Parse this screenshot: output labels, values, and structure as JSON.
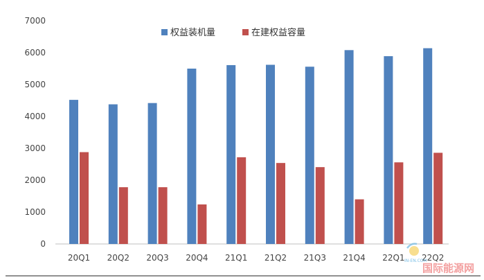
{
  "chart_data": {
    "type": "bar",
    "title": "",
    "xlabel": "",
    "ylabel": "",
    "categories": [
      "20Q1",
      "20Q2",
      "20Q3",
      "20Q4",
      "21Q1",
      "21Q2",
      "21Q3",
      "21Q4",
      "22Q1",
      "22Q2"
    ],
    "series": [
      {
        "name": "权益装机量",
        "color": "#4f81bd",
        "values": [
          4520,
          4380,
          4420,
          5500,
          5610,
          5620,
          5560,
          6080,
          5890,
          6140
        ]
      },
      {
        "name": "在建权益容量",
        "color": "#c0504d",
        "values": [
          2880,
          1780,
          1780,
          1240,
          2720,
          2540,
          2410,
          1400,
          2560,
          2860
        ]
      }
    ],
    "ylim": [
      0,
      7000
    ],
    "yticks": [
      0,
      1000,
      2000,
      3000,
      4000,
      5000,
      6000,
      7000
    ],
    "grid": false,
    "legend": "top-center"
  },
  "watermark": {
    "text": "国际能源网",
    "subtext": "IN-EN.COM"
  }
}
